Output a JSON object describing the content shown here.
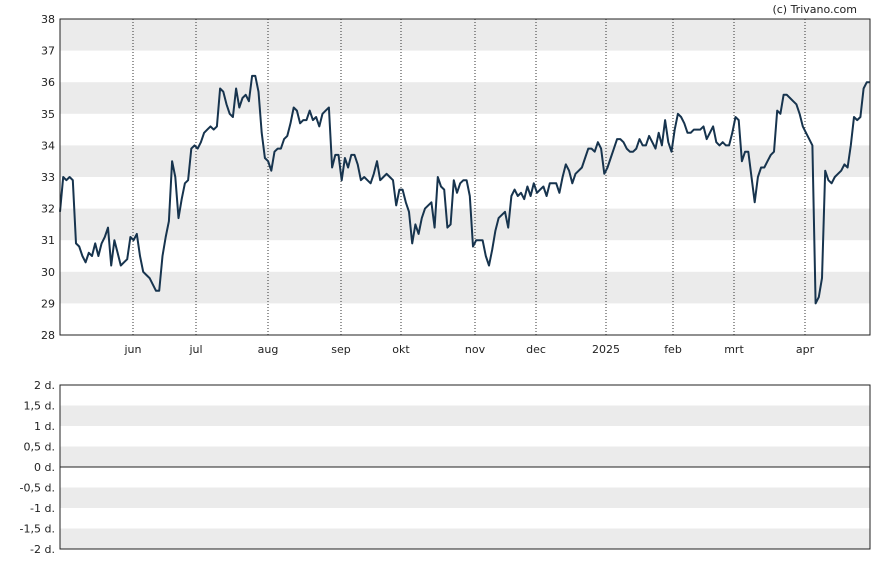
{
  "credit": "(c) Trivano.com",
  "colors": {
    "band": "#ebebeb",
    "frame": "#222222",
    "line": "#17344e",
    "vgrid": "#333333"
  },
  "chart_data": [
    {
      "type": "line",
      "title": "",
      "xlabel": "",
      "ylabel": "",
      "ylim": [
        28,
        38
      ],
      "y_ticks": [
        "38",
        "37",
        "36",
        "35",
        "34",
        "33",
        "32",
        "31",
        "30",
        "29",
        "28"
      ],
      "x_tick_labels": [
        "jun",
        "jul",
        "aug",
        "sep",
        "okt",
        "nov",
        "dec",
        "2025",
        "feb",
        "mrt",
        "apr"
      ],
      "grid": "vertical dotted lines at month starts, alternating horizontal bands",
      "series": [
        {
          "values": [
            31.9,
            33.0,
            32.9,
            33.0,
            32.9,
            30.9,
            30.8,
            30.5,
            30.3,
            30.6,
            30.5,
            30.9,
            30.5,
            30.9,
            31.1,
            31.4,
            30.2,
            31.0,
            30.6,
            30.2,
            30.3,
            30.4,
            31.1,
            31.0,
            31.2,
            30.5,
            30.0,
            29.9,
            29.8,
            29.6,
            29.4,
            29.4,
            30.5,
            31.1,
            31.6,
            33.5,
            33.0,
            31.7,
            32.3,
            32.8,
            32.9,
            33.9,
            34.0,
            33.9,
            34.1,
            34.4,
            34.5,
            34.6,
            34.5,
            34.6,
            35.8,
            35.7,
            35.3,
            35.0,
            34.9,
            35.8,
            35.2,
            35.5,
            35.6,
            35.4,
            36.2,
            36.2,
            35.7,
            34.4,
            33.6,
            33.5,
            33.2,
            33.8,
            33.9,
            33.9,
            34.2,
            34.3,
            34.7,
            35.2,
            35.1,
            34.7,
            34.8,
            34.8,
            35.1,
            34.8,
            34.9,
            34.6,
            35.0,
            35.1,
            35.2,
            33.3,
            33.7,
            33.7,
            32.9,
            33.6,
            33.3,
            33.7,
            33.7,
            33.4,
            32.9,
            33.0,
            32.9,
            32.8,
            33.1,
            33.5,
            32.9,
            33.0,
            33.1,
            33.0,
            32.9,
            32.1,
            32.6,
            32.6,
            32.2,
            31.9,
            30.9,
            31.5,
            31.2,
            31.7,
            32.0,
            32.1,
            32.2,
            31.4,
            33.0,
            32.7,
            32.6,
            31.4,
            31.5,
            32.9,
            32.5,
            32.8,
            32.9,
            32.9,
            32.4,
            30.8,
            31.0,
            31.0,
            31.0,
            30.5,
            30.2,
            30.7,
            31.3,
            31.7,
            31.8,
            31.9,
            31.4,
            32.4,
            32.6,
            32.4,
            32.5,
            32.3,
            32.7,
            32.4,
            32.8,
            32.5,
            32.6,
            32.7,
            32.4,
            32.8,
            32.8,
            32.8,
            32.5,
            33.0,
            33.4,
            33.2,
            32.8,
            33.1,
            33.2,
            33.3,
            33.6,
            33.9,
            33.9,
            33.8,
            34.1,
            33.9,
            33.1,
            33.3,
            33.6,
            33.9,
            34.2,
            34.2,
            34.1,
            33.9,
            33.8,
            33.8,
            33.9,
            34.2,
            34.0,
            34.0,
            34.3,
            34.1,
            33.9,
            34.4,
            34.0,
            34.8,
            34.1,
            33.8,
            34.5,
            35.0,
            34.9,
            34.7,
            34.4,
            34.4,
            34.5,
            34.5,
            34.5,
            34.6,
            34.2,
            34.4,
            34.6,
            34.1,
            34.0,
            34.1,
            34.0,
            34.0,
            34.4,
            34.9,
            34.8,
            33.5,
            33.8,
            33.8,
            33.0,
            32.2,
            33.0,
            33.3,
            33.3,
            33.5,
            33.7,
            33.8,
            35.1,
            35.0,
            35.6,
            35.6,
            35.5,
            35.4,
            35.3,
            35.0,
            34.6,
            34.4,
            34.2,
            34.0,
            29.0,
            29.2,
            29.8,
            33.2,
            32.9,
            32.8,
            33.0,
            33.1,
            33.2,
            33.4,
            33.3,
            34.0,
            34.9,
            34.8,
            34.9,
            35.8,
            36.0,
            36.0
          ]
        }
      ]
    },
    {
      "type": "line",
      "title": "",
      "xlabel": "",
      "ylabel": "",
      "ylim": [
        -2,
        2
      ],
      "y_ticks": [
        "2 d.",
        "1,5 d.",
        "1 d.",
        "0,5 d.",
        "0 d.",
        "-0,5 d.",
        "-1 d.",
        "-1,5 d.",
        "-2 d."
      ],
      "grid": "alternating horizontal bands",
      "series": [
        {
          "values": [
            0
          ]
        }
      ]
    }
  ]
}
